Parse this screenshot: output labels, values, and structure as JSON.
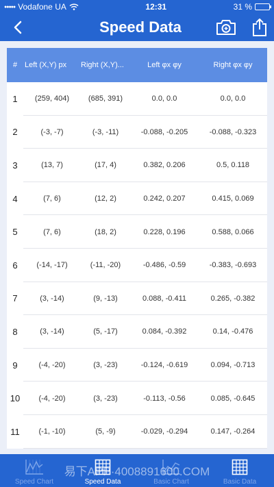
{
  "status": {
    "carrier": "Vodafone UA",
    "time": "12:31",
    "battery": "31 %",
    "battery_level": 0.31
  },
  "nav": {
    "title": "Speed Data"
  },
  "table": {
    "headers": {
      "index": "#",
      "left_xy": "Left (X,Y) px",
      "right_xy": "Right (X,Y)...",
      "left_phi": "Left φx φy",
      "right_phi": "Right φx φy"
    },
    "rows": [
      {
        "index": "1",
        "left_xy": "(259, 404)",
        "right_xy": "(685, 391)",
        "left_phi": "0.0, 0.0",
        "right_phi": "0.0, 0.0"
      },
      {
        "index": "2",
        "left_xy": "(-3, -7)",
        "right_xy": "(-3, -11)",
        "left_phi": "-0.088, -0.205",
        "right_phi": "-0.088, -0.323"
      },
      {
        "index": "3",
        "left_xy": "(13, 7)",
        "right_xy": "(17, 4)",
        "left_phi": "0.382, 0.206",
        "right_phi": "0.5, 0.118"
      },
      {
        "index": "4",
        "left_xy": "(7, 6)",
        "right_xy": "(12, 2)",
        "left_phi": "0.242, 0.207",
        "right_phi": "0.415, 0.069"
      },
      {
        "index": "5",
        "left_xy": "(7, 6)",
        "right_xy": "(18, 2)",
        "left_phi": "0.228, 0.196",
        "right_phi": "0.588, 0.066"
      },
      {
        "index": "6",
        "left_xy": "(-14, -17)",
        "right_xy": "(-11, -20)",
        "left_phi": "-0.486, -0.59",
        "right_phi": "-0.383, -0.693"
      },
      {
        "index": "7",
        "left_xy": "(3, -14)",
        "right_xy": "(9, -13)",
        "left_phi": "0.088, -0.411",
        "right_phi": "0.265, -0.382"
      },
      {
        "index": "8",
        "left_xy": "(3, -14)",
        "right_xy": "(5, -17)",
        "left_phi": "0.084, -0.392",
        "right_phi": "0.14, -0.476"
      },
      {
        "index": "9",
        "left_xy": "(-4, -20)",
        "right_xy": "(3, -23)",
        "left_phi": "-0.124, -0.619",
        "right_phi": "0.094, -0.713"
      },
      {
        "index": "10",
        "left_xy": "(-4, -20)",
        "right_xy": "(3, -23)",
        "left_phi": "-0.113, -0.56",
        "right_phi": "0.085, -0.645"
      },
      {
        "index": "11",
        "left_xy": "(-1, -10)",
        "right_xy": "(5, -9)",
        "left_phi": "-0.029, -0.294",
        "right_phi": "0.147, -0.264"
      }
    ]
  },
  "tabs": [
    {
      "label": "Speed Chart",
      "icon": "line-chart-icon",
      "active": false
    },
    {
      "label": "Speed Data",
      "icon": "grid-table-icon",
      "active": true
    },
    {
      "label": "Basic Chart",
      "icon": "area-chart-icon",
      "active": false
    },
    {
      "label": "Basic Data",
      "icon": "grid-table-icon",
      "active": false
    }
  ],
  "watermark": "易下APP·4008891600.COM",
  "colors": {
    "primary": "#2565d1",
    "header": "#5c8de3",
    "background": "#ebeff8",
    "tab_inactive": "#7fa6ea"
  }
}
